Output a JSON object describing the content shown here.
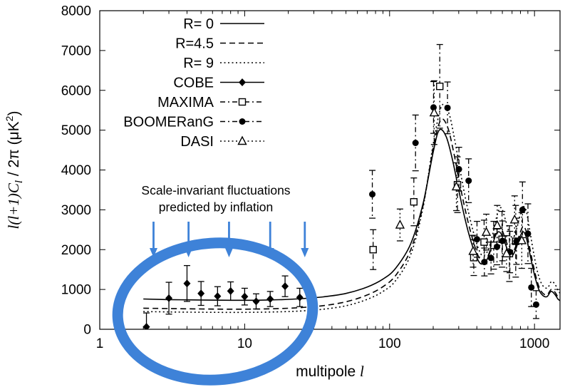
{
  "colors": {
    "axis": "#000000",
    "curve": "#000000",
    "annotation_blue": "#3e82d8",
    "background": "#ffffff"
  },
  "chart_data": {
    "type": "line",
    "title": "",
    "xlabel": "multipole l",
    "xlabel_plain": "multipole ",
    "xlabel_var": "l",
    "ylabel": "l(l+1)Cl / 2pi (uK^2)",
    "ylabel_rich": {
      "main1": "l(l+1)C",
      "sub": "l",
      "mid": " / 2π (μK",
      "sup": "2",
      "end": ")"
    },
    "x_scale": "log",
    "xlim": [
      1,
      1500
    ],
    "ylim": [
      0,
      8000
    ],
    "x_ticks": [
      1,
      10,
      100,
      1000
    ],
    "y_ticks": [
      0,
      1000,
      2000,
      3000,
      4000,
      5000,
      6000,
      7000,
      8000
    ],
    "grid": false,
    "legend_position": "top-left-inside",
    "theory_series": [
      {
        "name": "R= 0",
        "style": "solid",
        "points": [
          [
            2,
            760
          ],
          [
            3,
            745
          ],
          [
            5,
            735
          ],
          [
            8,
            728
          ],
          [
            12,
            730
          ],
          [
            18,
            745
          ],
          [
            25,
            770
          ],
          [
            35,
            815
          ],
          [
            50,
            900
          ],
          [
            70,
            1060
          ],
          [
            90,
            1260
          ],
          [
            110,
            1530
          ],
          [
            140,
            2150
          ],
          [
            170,
            3150
          ],
          [
            200,
            4450
          ],
          [
            220,
            5000
          ],
          [
            245,
            4850
          ],
          [
            270,
            4300
          ],
          [
            300,
            3500
          ],
          [
            330,
            2800
          ],
          [
            365,
            2200
          ],
          [
            400,
            1800
          ],
          [
            430,
            1640
          ],
          [
            470,
            1750
          ],
          [
            510,
            2100
          ],
          [
            545,
            2400
          ],
          [
            580,
            2430
          ],
          [
            620,
            2200
          ],
          [
            660,
            1950
          ],
          [
            700,
            1850
          ],
          [
            740,
            2000
          ],
          [
            790,
            2300
          ],
          [
            830,
            2450
          ],
          [
            870,
            2350
          ],
          [
            910,
            2050
          ],
          [
            960,
            1650
          ],
          [
            1010,
            1300
          ],
          [
            1070,
            1000
          ],
          [
            1140,
            850
          ],
          [
            1220,
            820
          ],
          [
            1300,
            950
          ],
          [
            1380,
            880
          ],
          [
            1450,
            760
          ],
          [
            1500,
            720
          ]
        ]
      },
      {
        "name": "R=4.5",
        "style": "dashed",
        "points": [
          [
            2,
            530
          ],
          [
            3,
            520
          ],
          [
            5,
            510
          ],
          [
            8,
            505
          ],
          [
            12,
            508
          ],
          [
            18,
            522
          ],
          [
            25,
            548
          ],
          [
            35,
            595
          ],
          [
            50,
            690
          ],
          [
            70,
            860
          ],
          [
            90,
            1070
          ],
          [
            110,
            1350
          ],
          [
            140,
            2000
          ],
          [
            170,
            3100
          ],
          [
            200,
            4550
          ],
          [
            225,
            5250
          ],
          [
            250,
            5100
          ],
          [
            275,
            4500
          ],
          [
            305,
            3650
          ],
          [
            335,
            2950
          ],
          [
            370,
            2320
          ],
          [
            405,
            1880
          ],
          [
            435,
            1700
          ],
          [
            475,
            1820
          ],
          [
            515,
            2200
          ],
          [
            550,
            2520
          ],
          [
            585,
            2550
          ],
          [
            625,
            2300
          ],
          [
            665,
            2030
          ],
          [
            705,
            1930
          ],
          [
            745,
            2100
          ],
          [
            795,
            2420
          ],
          [
            835,
            2580
          ],
          [
            875,
            2470
          ],
          [
            915,
            2150
          ],
          [
            965,
            1730
          ],
          [
            1015,
            1370
          ],
          [
            1075,
            1060
          ],
          [
            1145,
            900
          ],
          [
            1225,
            870
          ],
          [
            1305,
            1000
          ],
          [
            1385,
            930
          ],
          [
            1455,
            800
          ],
          [
            1500,
            760
          ]
        ]
      },
      {
        "name": "R= 9",
        "style": "dotted",
        "points": [
          [
            2,
            445
          ],
          [
            3,
            435
          ],
          [
            5,
            428
          ],
          [
            8,
            424
          ],
          [
            12,
            427
          ],
          [
            18,
            440
          ],
          [
            25,
            462
          ],
          [
            35,
            505
          ],
          [
            50,
            590
          ],
          [
            70,
            750
          ],
          [
            90,
            950
          ],
          [
            110,
            1220
          ],
          [
            140,
            1880
          ],
          [
            170,
            3050
          ],
          [
            200,
            4650
          ],
          [
            228,
            5600
          ],
          [
            255,
            5450
          ],
          [
            280,
            4800
          ],
          [
            310,
            3900
          ],
          [
            340,
            3150
          ],
          [
            375,
            2500
          ],
          [
            410,
            2030
          ],
          [
            440,
            1850
          ],
          [
            480,
            2000
          ],
          [
            520,
            2450
          ],
          [
            555,
            2900
          ],
          [
            590,
            3050
          ],
          [
            630,
            2750
          ],
          [
            670,
            2420
          ],
          [
            710,
            2300
          ],
          [
            750,
            2500
          ],
          [
            800,
            2900
          ],
          [
            840,
            3080
          ],
          [
            880,
            2950
          ],
          [
            920,
            2560
          ],
          [
            970,
            2060
          ],
          [
            1020,
            1640
          ],
          [
            1080,
            1280
          ],
          [
            1150,
            1080
          ],
          [
            1230,
            1040
          ],
          [
            1310,
            1200
          ],
          [
            1390,
            1120
          ],
          [
            1460,
            960
          ],
          [
            1500,
            910
          ]
        ]
      }
    ],
    "data_series": [
      {
        "name": "COBE",
        "marker": "filled-diamond",
        "errbar_style": "solid",
        "points": [
          [
            2.1,
            60,
            350
          ],
          [
            3,
            780,
            400
          ],
          [
            4,
            1150,
            450
          ],
          [
            5,
            900,
            300
          ],
          [
            6.5,
            830,
            240
          ],
          [
            8,
            960,
            230
          ],
          [
            10,
            820,
            210
          ],
          [
            12,
            700,
            190
          ],
          [
            15,
            760,
            190
          ],
          [
            19,
            1080,
            260
          ],
          [
            24,
            800,
            230
          ]
        ]
      },
      {
        "name": "MAXIMA",
        "marker": "open-square",
        "errbar_style": "dashdot",
        "points": [
          [
            77,
            2000,
            500
          ],
          [
            147,
            3200,
            600
          ],
          [
            222,
            6100,
            1050
          ],
          [
            294,
            3630,
            700
          ],
          [
            381,
            1800,
            450
          ],
          [
            449,
            2190,
            550
          ],
          [
            523,
            2110,
            600
          ],
          [
            597,
            2260,
            700
          ],
          [
            671,
            1900,
            700
          ],
          [
            742,
            2210,
            900
          ]
        ]
      },
      {
        "name": "BOOMERanG",
        "marker": "filled-circle",
        "errbar_style": "dashdot",
        "points": [
          [
            76,
            3390,
            600
          ],
          [
            151,
            4680,
            700
          ],
          [
            201,
            5570,
            650
          ],
          [
            251,
            5560,
            650
          ],
          [
            301,
            4020,
            550
          ],
          [
            351,
            3730,
            550
          ],
          [
            401,
            2260,
            450
          ],
          [
            451,
            1690,
            350
          ],
          [
            501,
            1790,
            400
          ],
          [
            551,
            2070,
            450
          ],
          [
            601,
            2220,
            500
          ],
          [
            676,
            1940,
            520
          ],
          [
            751,
            2210,
            580
          ],
          [
            826,
            3000,
            700
          ],
          [
            901,
            2400,
            750
          ],
          [
            951,
            1050,
            480
          ],
          [
            1026,
            620,
            350
          ]
        ]
      },
      {
        "name": "DASI",
        "marker": "open-triangle",
        "errbar_style": "dotted",
        "points": [
          [
            118,
            2620,
            400
          ],
          [
            203,
            5440,
            800
          ],
          [
            289,
            3580,
            600
          ],
          [
            377,
            1960,
            400
          ],
          [
            465,
            2440,
            450
          ],
          [
            553,
            2610,
            500
          ],
          [
            641,
            1900,
            450
          ],
          [
            729,
            2750,
            600
          ],
          [
            817,
            2230,
            700
          ]
        ]
      }
    ],
    "annotation": {
      "lines": [
        "Scale-invariant fluctuations",
        "predicted by inflation"
      ],
      "color": "#3e82d8",
      "arrows_l": [
        2.35,
        4.1,
        7.8,
        15,
        26
      ],
      "ellipse_region_l": [
        2,
        30
      ]
    }
  }
}
